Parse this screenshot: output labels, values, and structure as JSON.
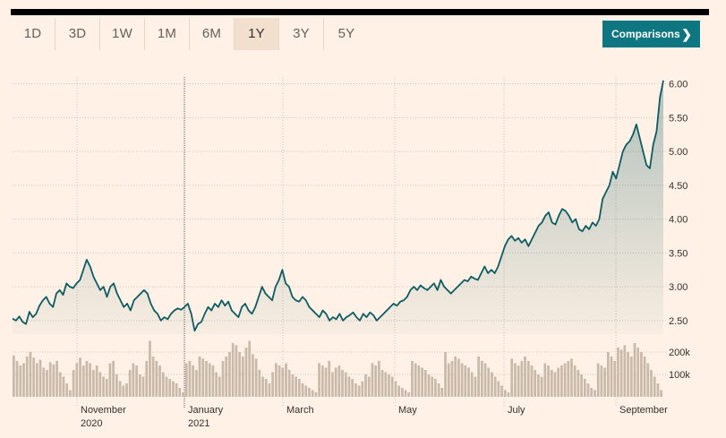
{
  "tabs": [
    "1D",
    "3D",
    "1W",
    "1M",
    "6M",
    "1Y",
    "3Y",
    "5Y"
  ],
  "active_tab": "1Y",
  "comparisons_label": "Comparisons",
  "comparisons_icon": "chevron-right-icon",
  "colors": {
    "line": "#0d5c63",
    "volume": "#c9b9aa",
    "accent": "#0d7680",
    "background": "#fff1e5"
  },
  "chart_data": [
    {
      "type": "area",
      "title": "",
      "xlabel": "",
      "ylabel": "",
      "ylim": [
        2.3,
        6.1
      ],
      "y_ticks": [
        "6.00",
        "5.50",
        "5.00",
        "4.50",
        "4.00",
        "3.50",
        "3.00",
        "2.50"
      ],
      "x_month_labels": [
        {
          "month": "November",
          "year": "2020"
        },
        {
          "month": "January",
          "year": "2021"
        },
        {
          "month": "March",
          "year": ""
        },
        {
          "month": "May",
          "year": ""
        },
        {
          "month": "July",
          "year": ""
        },
        {
          "month": "September",
          "year": ""
        }
      ],
      "series": [
        {
          "values": [
            2.53,
            2.5,
            2.56,
            2.48,
            2.45,
            2.63,
            2.55,
            2.6,
            2.72,
            2.8,
            2.85,
            2.75,
            2.7,
            2.9,
            2.95,
            2.88,
            3.05,
            3.0,
            2.98,
            3.05,
            3.1,
            3.25,
            3.4,
            3.3,
            3.15,
            3.05,
            2.95,
            3.0,
            2.85,
            3.0,
            3.05,
            2.9,
            2.8,
            2.7,
            2.75,
            2.65,
            2.8,
            2.85,
            2.9,
            2.95,
            2.9,
            2.75,
            2.65,
            2.6,
            2.5,
            2.55,
            2.52,
            2.6,
            2.65,
            2.68,
            2.66,
            2.7,
            2.75,
            2.6,
            2.35,
            2.45,
            2.48,
            2.6,
            2.7,
            2.65,
            2.75,
            2.7,
            2.8,
            2.72,
            2.78,
            2.65,
            2.6,
            2.55,
            2.7,
            2.75,
            2.65,
            2.6,
            2.7,
            2.85,
            3.0,
            2.9,
            2.85,
            2.8,
            3.0,
            3.1,
            3.25,
            3.05,
            3.0,
            2.85,
            2.8,
            2.78,
            2.85,
            2.8,
            2.7,
            2.65,
            2.6,
            2.55,
            2.65,
            2.6,
            2.5,
            2.55,
            2.52,
            2.6,
            2.5,
            2.55,
            2.58,
            2.62,
            2.55,
            2.5,
            2.6,
            2.55,
            2.62,
            2.58,
            2.5,
            2.55,
            2.6,
            2.65,
            2.7,
            2.75,
            2.72,
            2.78,
            2.8,
            2.85,
            2.95,
            3.0,
            2.95,
            3.02,
            2.98,
            2.95,
            3.0,
            3.05,
            2.95,
            3.1,
            3.0,
            2.95,
            2.9,
            2.95,
            3.0,
            3.05,
            3.1,
            3.08,
            3.15,
            3.12,
            3.1,
            3.2,
            3.3,
            3.2,
            3.25,
            3.2,
            3.3,
            3.45,
            3.6,
            3.7,
            3.75,
            3.68,
            3.72,
            3.65,
            3.7,
            3.6,
            3.7,
            3.8,
            3.9,
            3.95,
            4.05,
            4.1,
            3.95,
            3.92,
            4.05,
            4.15,
            4.12,
            4.05,
            3.95,
            4.0,
            3.85,
            3.82,
            3.9,
            3.85,
            3.95,
            3.9,
            4.0,
            4.3,
            4.4,
            4.5,
            4.7,
            4.6,
            4.8,
            5.0,
            5.1,
            5.15,
            5.25,
            5.4,
            5.2,
            5.0,
            4.8,
            4.75,
            5.1,
            5.3,
            5.8,
            6.05
          ]
        }
      ]
    },
    {
      "type": "bar",
      "title": "",
      "ylim": [
        0,
        260000
      ],
      "y_ticks": [
        "200k",
        "100k"
      ],
      "values": [
        185000,
        160000,
        140000,
        150000,
        180000,
        200000,
        175000,
        150000,
        165000,
        130000,
        120000,
        155000,
        145000,
        160000,
        110000,
        90000,
        60000,
        30000,
        120000,
        150000,
        175000,
        140000,
        160000,
        150000,
        120000,
        140000,
        110000,
        90000,
        80000,
        150000,
        160000,
        100000,
        70000,
        50000,
        60000,
        120000,
        150000,
        140000,
        100000,
        90000,
        160000,
        250000,
        180000,
        160000,
        140000,
        110000,
        90000,
        80000,
        70000,
        60000,
        40000,
        20000,
        150000,
        160000,
        140000,
        120000,
        180000,
        170000,
        160000,
        150000,
        140000,
        110000,
        90000,
        160000,
        180000,
        200000,
        240000,
        230000,
        200000,
        180000,
        220000,
        250000,
        190000,
        170000,
        120000,
        90000,
        80000,
        60000,
        110000,
        150000,
        140000,
        130000,
        150000,
        120000,
        100000,
        90000,
        80000,
        60000,
        50000,
        40000,
        30000,
        20000,
        150000,
        140000,
        130000,
        160000,
        110000,
        130000,
        140000,
        120000,
        110000,
        90000,
        80000,
        60000,
        50000,
        70000,
        100000,
        90000,
        150000,
        140000,
        160000,
        120000,
        110000,
        100000,
        90000,
        70000,
        50000,
        40000,
        30000,
        20000,
        160000,
        150000,
        140000,
        130000,
        120000,
        100000,
        90000,
        80000,
        60000,
        40000,
        200000,
        150000,
        160000,
        180000,
        170000,
        150000,
        140000,
        130000,
        110000,
        90000,
        180000,
        160000,
        150000,
        130000,
        110000,
        90000,
        70000,
        50000,
        30000,
        20000,
        170000,
        150000,
        140000,
        160000,
        180000,
        160000,
        140000,
        120000,
        100000,
        90000,
        150000,
        140000,
        120000,
        110000,
        130000,
        140000,
        150000,
        160000,
        170000,
        140000,
        120000,
        100000,
        80000,
        60000,
        40000,
        30000,
        150000,
        140000,
        130000,
        200000,
        180000,
        160000,
        220000,
        210000,
        230000,
        200000,
        180000,
        240000,
        220000,
        200000,
        180000,
        150000,
        120000,
        90000,
        60000,
        30000
      ]
    }
  ]
}
